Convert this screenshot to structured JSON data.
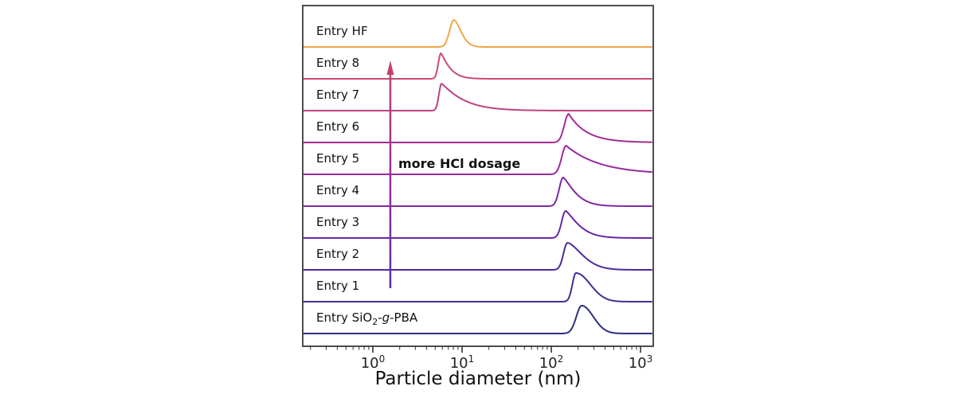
{
  "chart_data": {
    "type": "line",
    "subtype": "ridgeline-distributions",
    "title": "",
    "xlabel": "Particle diameter (nm)",
    "ylabel": "",
    "x_scale": "log",
    "x_range_nm": [
      0.16,
      1400
    ],
    "x_axis": {
      "tick_base": "10",
      "tick_exponents": [
        0,
        1,
        2,
        3
      ],
      "tick_values_nm": [
        1,
        10,
        100,
        1000
      ],
      "minor_ticks": "log decades 2-9"
    },
    "grid": false,
    "legend": "none (row labels inside plot, top to bottom)",
    "annotation": {
      "text": "more HCl dosage",
      "arrow": "vertical arrow at ~1.6 nm pointing up from Entry 1 row to Entry 8 row",
      "arrow_x_nm": 1.57,
      "arrow_color_bottom": "#5A2BA6",
      "arrow_color_mid": "#9A2D9B",
      "arrow_color_top": "#C4406E"
    },
    "series": [
      {
        "id": "entry-hf",
        "parts": [
          {
            "t": "Entry HF"
          }
        ],
        "color": "#EFA74A",
        "peak_nm": 8.1,
        "peak_h": 34,
        "wl": 0.048,
        "wr": 0.075,
        "er": 1.7
      },
      {
        "id": "entry-8",
        "parts": [
          {
            "t": "Entry 8"
          }
        ],
        "color": "#C84A74",
        "peak_nm": 5.8,
        "peak_h": 32,
        "wl": 0.03,
        "wr": 0.065,
        "er": 1.2
      },
      {
        "id": "entry-7",
        "parts": [
          {
            "t": "Entry 7"
          }
        ],
        "color": "#BC4280",
        "peak_nm": 5.9,
        "peak_h": 34,
        "wl": 0.03,
        "wr": 0.14,
        "er": 1.1
      },
      {
        "id": "entry-6",
        "parts": [
          {
            "t": "Entry 6"
          }
        ],
        "color": "#A12E92",
        "peak_nm": 157,
        "peak_h": 36,
        "wl": 0.05,
        "wr": 0.1,
        "er": 1.0
      },
      {
        "id": "entry-5",
        "parts": [
          {
            "t": "Entry 5"
          }
        ],
        "color": "#98299F",
        "peak_nm": 147,
        "peak_h": 36,
        "wl": 0.05,
        "wr": 0.19,
        "er": 1.0
      },
      {
        "id": "entry-4",
        "parts": [
          {
            "t": "Entry 4"
          }
        ],
        "color": "#7E28A4",
        "peak_nm": 136,
        "peak_h": 36,
        "wl": 0.045,
        "wr": 0.1,
        "er": 1.3
      },
      {
        "id": "entry-3",
        "parts": [
          {
            "t": "Entry 3"
          }
        ],
        "color": "#6927A8",
        "peak_nm": 145,
        "peak_h": 34,
        "wl": 0.045,
        "wr": 0.11,
        "er": 1.3
      },
      {
        "id": "entry-2",
        "parts": [
          {
            "t": "Entry 2"
          }
        ],
        "color": "#4E2BA0",
        "peak_nm": 152,
        "peak_h": 34,
        "wl": 0.045,
        "wr": 0.15,
        "er": 1.6
      },
      {
        "id": "entry-1",
        "parts": [
          {
            "t": "Entry 1"
          }
        ],
        "color": "#3E3096",
        "peak_nm": 189,
        "peak_h": 36,
        "wl": 0.04,
        "wr": 0.16,
        "er": 2.0
      },
      {
        "id": "entry-sio2-g-pba",
        "parts": [
          {
            "t": "Entry SiO"
          },
          {
            "t": "2",
            "s": "sub"
          },
          {
            "t": "-"
          },
          {
            "t": "g",
            "s": "i"
          },
          {
            "t": "-PBA"
          }
        ],
        "color": "#2D2F82",
        "peak_nm": 219,
        "peak_h": 35,
        "wl": 0.06,
        "wr": 0.13,
        "er": 2.0
      }
    ],
    "frame_color": "#4d4d4d",
    "tick_color": "#333333",
    "text_color": "#111111"
  }
}
